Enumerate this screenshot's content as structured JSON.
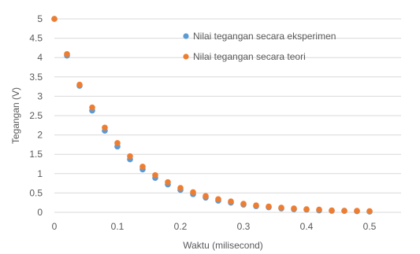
{
  "chart_data": {
    "type": "scatter",
    "xlabel": "Waktu (milisecond)",
    "ylabel": "Tegangan (V)",
    "xlim": [
      0,
      0.55
    ],
    "ylim": [
      0,
      5
    ],
    "x_ticks": [
      "0",
      "0.1",
      "0.2",
      "0.3",
      "0.4",
      "0.5"
    ],
    "y_ticks": [
      "0",
      "0.5",
      "1",
      "1.5",
      "2",
      "2.5",
      "3",
      "3.5",
      "4",
      "4.5",
      "5"
    ],
    "grid": "horizontal",
    "legend_position": "top-right",
    "series": [
      {
        "name": "Nilai tegangan secara eksperimen",
        "color": "#5B9BD5",
        "points": [
          [
            0.0,
            5.0
          ],
          [
            0.02,
            4.05
          ],
          [
            0.04,
            3.27
          ],
          [
            0.06,
            2.63
          ],
          [
            0.08,
            2.11
          ],
          [
            0.1,
            1.7
          ],
          [
            0.12,
            1.37
          ],
          [
            0.14,
            1.11
          ],
          [
            0.16,
            0.89
          ],
          [
            0.18,
            0.72
          ],
          [
            0.2,
            0.58
          ],
          [
            0.22,
            0.47
          ],
          [
            0.24,
            0.38
          ],
          [
            0.26,
            0.3
          ],
          [
            0.28,
            0.25
          ],
          [
            0.3,
            0.2
          ],
          [
            0.32,
            0.16
          ],
          [
            0.34,
            0.13
          ],
          [
            0.36,
            0.1
          ],
          [
            0.38,
            0.08
          ],
          [
            0.4,
            0.07
          ],
          [
            0.42,
            0.05
          ],
          [
            0.44,
            0.04
          ],
          [
            0.46,
            0.04
          ],
          [
            0.48,
            0.03
          ],
          [
            0.5,
            0.02
          ]
        ]
      },
      {
        "name": "Nilai tegangan secara teori",
        "color": "#ED7D31",
        "points": [
          [
            0.0,
            5.0
          ],
          [
            0.02,
            4.09
          ],
          [
            0.04,
            3.3
          ],
          [
            0.06,
            2.71
          ],
          [
            0.08,
            2.19
          ],
          [
            0.1,
            1.79
          ],
          [
            0.12,
            1.45
          ],
          [
            0.14,
            1.18
          ],
          [
            0.16,
            0.96
          ],
          [
            0.18,
            0.78
          ],
          [
            0.2,
            0.63
          ],
          [
            0.22,
            0.52
          ],
          [
            0.24,
            0.42
          ],
          [
            0.26,
            0.34
          ],
          [
            0.28,
            0.28
          ],
          [
            0.3,
            0.22
          ],
          [
            0.32,
            0.18
          ],
          [
            0.34,
            0.15
          ],
          [
            0.36,
            0.12
          ],
          [
            0.38,
            0.1
          ],
          [
            0.4,
            0.08
          ],
          [
            0.42,
            0.07
          ],
          [
            0.44,
            0.05
          ],
          [
            0.46,
            0.04
          ],
          [
            0.48,
            0.04
          ],
          [
            0.5,
            0.03
          ]
        ]
      }
    ]
  }
}
